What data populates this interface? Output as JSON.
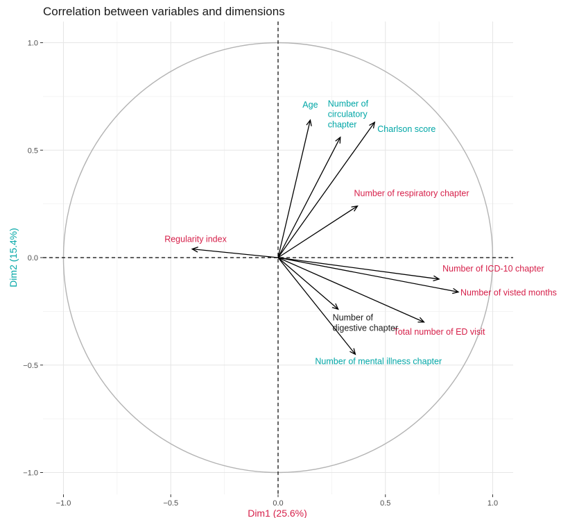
{
  "chart_data": {
    "type": "scatter",
    "subtype": "pca-correlation-circle",
    "title": "Correlation between variables and dimensions",
    "xlabel": "Dim1 (25.6%)",
    "ylabel": "Dim2 (15.4%)",
    "xlim": [
      -1.1,
      1.1
    ],
    "ylim": [
      -1.05,
      1.05
    ],
    "xticks": [
      {
        "value": -1.0,
        "label": "−1.0"
      },
      {
        "value": -0.5,
        "label": "−0.5"
      },
      {
        "value": 0.0,
        "label": "0.0"
      },
      {
        "value": 0.5,
        "label": "0.5"
      },
      {
        "value": 1.0,
        "label": "1.0"
      }
    ],
    "yticks": [
      {
        "value": -1.0,
        "label": "−1.0"
      },
      {
        "value": -0.5,
        "label": "−0.5"
      },
      {
        "value": 0.0,
        "label": "0.0"
      },
      {
        "value": 0.5,
        "label": "0.5"
      },
      {
        "value": 1.0,
        "label": "1.0"
      }
    ],
    "grid": true,
    "unit_circle": true,
    "colors": {
      "teal": "#00a6a6",
      "red": "#d6204a",
      "black": "#1a1a1a",
      "axis_x_title": "#d6204a",
      "axis_y_title": "#00a6a6"
    },
    "variables": [
      {
        "lines": [
          "Age"
        ],
        "x": 0.15,
        "y": 0.64,
        "color": "teal"
      },
      {
        "lines": [
          "Number of",
          "circulatory",
          "chapter"
        ],
        "x": 0.29,
        "y": 0.56,
        "color": "teal"
      },
      {
        "lines": [
          "Charlson score"
        ],
        "x": 0.45,
        "y": 0.63,
        "color": "teal"
      },
      {
        "lines": [
          "Number of respiratory chapter"
        ],
        "x": 0.37,
        "y": 0.24,
        "color": "red"
      },
      {
        "lines": [
          "Regularity index"
        ],
        "x": -0.4,
        "y": 0.04,
        "color": "red"
      },
      {
        "lines": [
          "Number of ICD-10 chapter"
        ],
        "x": 0.75,
        "y": -0.1,
        "color": "red"
      },
      {
        "lines": [
          "Number of visted months"
        ],
        "x": 0.84,
        "y": -0.16,
        "color": "red"
      },
      {
        "lines": [
          "Total number of ED visit"
        ],
        "x": 0.68,
        "y": -0.3,
        "color": "red"
      },
      {
        "lines": [
          "Number of",
          "digestive chapter"
        ],
        "x": 0.28,
        "y": -0.24,
        "color": "black"
      },
      {
        "lines": [
          "Number of mental illness chapter"
        ],
        "x": 0.36,
        "y": -0.45,
        "color": "teal"
      }
    ]
  }
}
